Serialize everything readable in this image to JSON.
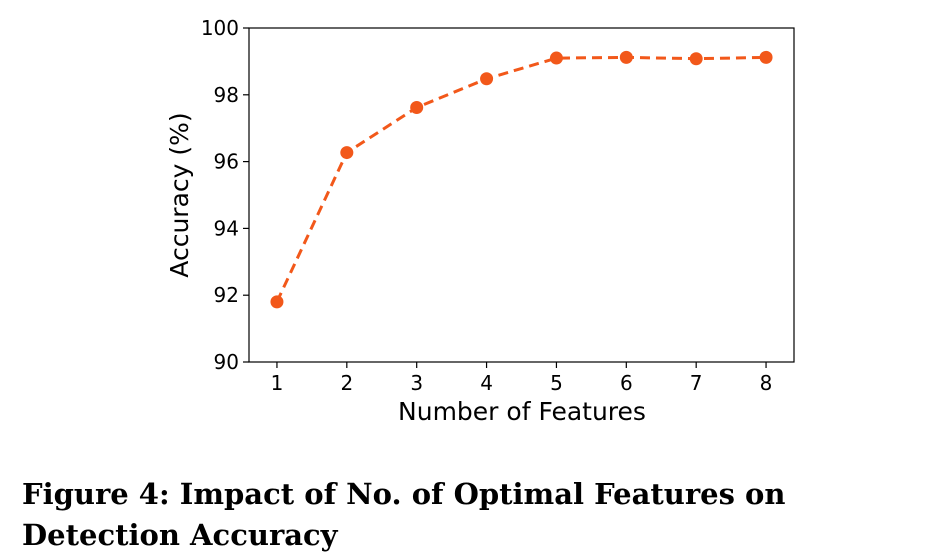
{
  "chart_data": {
    "type": "line",
    "xlabel": "Number of Features",
    "ylabel": "Accuracy (%)",
    "x": [
      1,
      2,
      3,
      4,
      5,
      6,
      7,
      8
    ],
    "series": [
      {
        "values": [
          91.8,
          96.27,
          97.62,
          98.48,
          99.1,
          99.12,
          99.08,
          99.12
        ]
      }
    ],
    "xlim": [
      0.6,
      8.4
    ],
    "ylim": [
      90,
      100
    ],
    "xticks": [
      1,
      2,
      3,
      4,
      5,
      6,
      7,
      8
    ],
    "yticks": [
      90,
      92,
      94,
      96,
      98,
      100
    ],
    "grid": false,
    "line_style": "dashed",
    "marker": "circle",
    "color": "#F2581A"
  },
  "caption": "Figure 4: Impact of No. of Optimal Features on Detection Accuracy"
}
